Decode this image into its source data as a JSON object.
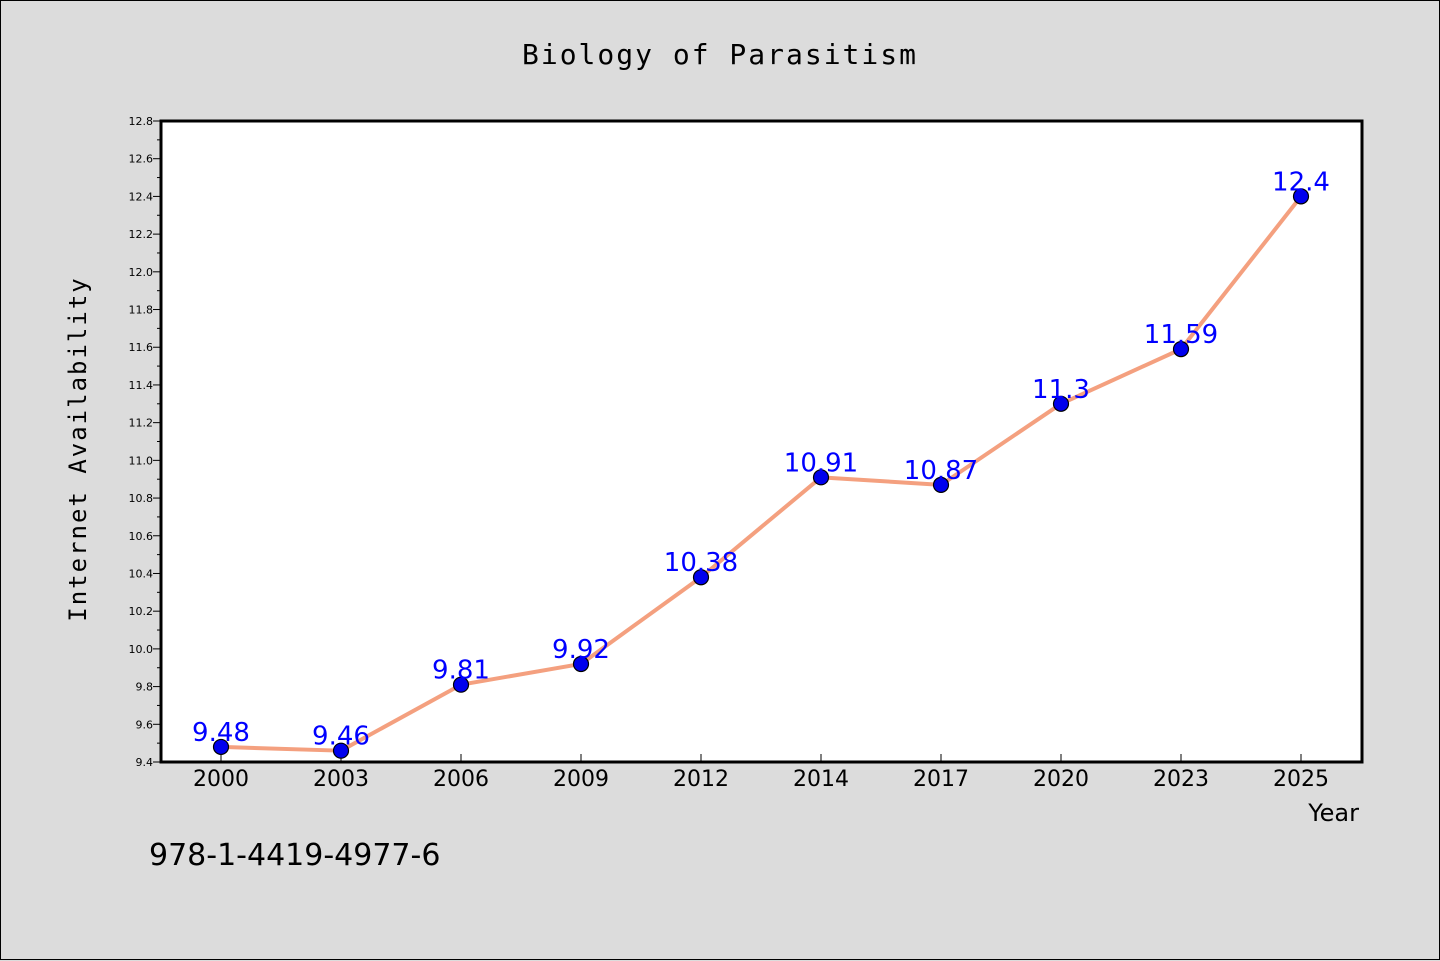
{
  "chart_data": {
    "type": "line",
    "title": "Biology of Parasitism",
    "xlabel": "Year",
    "ylabel": "Internet Availability",
    "categories": [
      "2000",
      "2003",
      "2006",
      "2009",
      "2012",
      "2014",
      "2017",
      "2020",
      "2023",
      "2025"
    ],
    "series": [
      {
        "values": [
          9.48,
          9.46,
          9.81,
          9.92,
          10.38,
          10.91,
          10.87,
          11.3,
          11.59,
          12.4
        ],
        "labels": [
          "9.48",
          "9.46",
          "9.81",
          "9.92",
          "10.38",
          "10.91",
          "10.87",
          "11.3",
          "11.59",
          "12.4"
        ],
        "line_color": "#f4a07f",
        "marker_color": "#0000ee"
      }
    ],
    "ylim": [
      9.4,
      12.8
    ],
    "yticks": [
      "9.4",
      "9.6",
      "9.8",
      "10.0",
      "10.2",
      "10.4",
      "10.6",
      "10.8",
      "11.0",
      "11.2",
      "11.4",
      "11.6",
      "11.8",
      "12.0",
      "12.2",
      "12.4",
      "12.6",
      "12.8"
    ],
    "grid": false,
    "legend": "none"
  },
  "footer_text": "978-1-4419-4977-6"
}
